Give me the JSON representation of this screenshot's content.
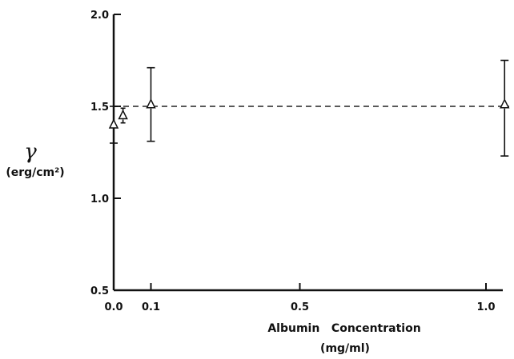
{
  "chart_data": {
    "type": "scatter",
    "title": "",
    "ylabel_symbol": "γ",
    "ylabel_units": "(erg/cm²)",
    "xlabel_line1": "Albumin   Concentration",
    "xlabel_line2": "(mg/ml)",
    "xlim": [
      0.0,
      1.05
    ],
    "ylim": [
      0.5,
      2.0
    ],
    "xticks": [
      {
        "value": 0.0,
        "label": "0.0"
      },
      {
        "value": 0.1,
        "label": "0.1"
      },
      {
        "value": 0.5,
        "label": "0.5"
      },
      {
        "value": 1.0,
        "label": "1.0"
      }
    ],
    "yticks": [
      {
        "value": 0.5,
        "label": "0.5"
      },
      {
        "value": 1.0,
        "label": "1.0"
      },
      {
        "value": 1.5,
        "label": "1.5"
      },
      {
        "value": 2.0,
        "label": "2.0"
      }
    ],
    "marker": "open-triangle",
    "points": [
      {
        "x": 0.0,
        "y": 1.4,
        "ylow": 1.3,
        "yhigh": 1.5
      },
      {
        "x": 0.025,
        "y": 1.45,
        "ylow": 1.41,
        "yhigh": 1.49
      },
      {
        "x": 0.1,
        "y": 1.51,
        "ylow": 1.31,
        "yhigh": 1.71
      },
      {
        "x": 1.05,
        "y": 1.51,
        "ylow": 1.23,
        "yhigh": 1.75
      }
    ],
    "reference_line": {
      "y": 1.5,
      "style": "dashed"
    },
    "grid": false,
    "legend": "none"
  }
}
